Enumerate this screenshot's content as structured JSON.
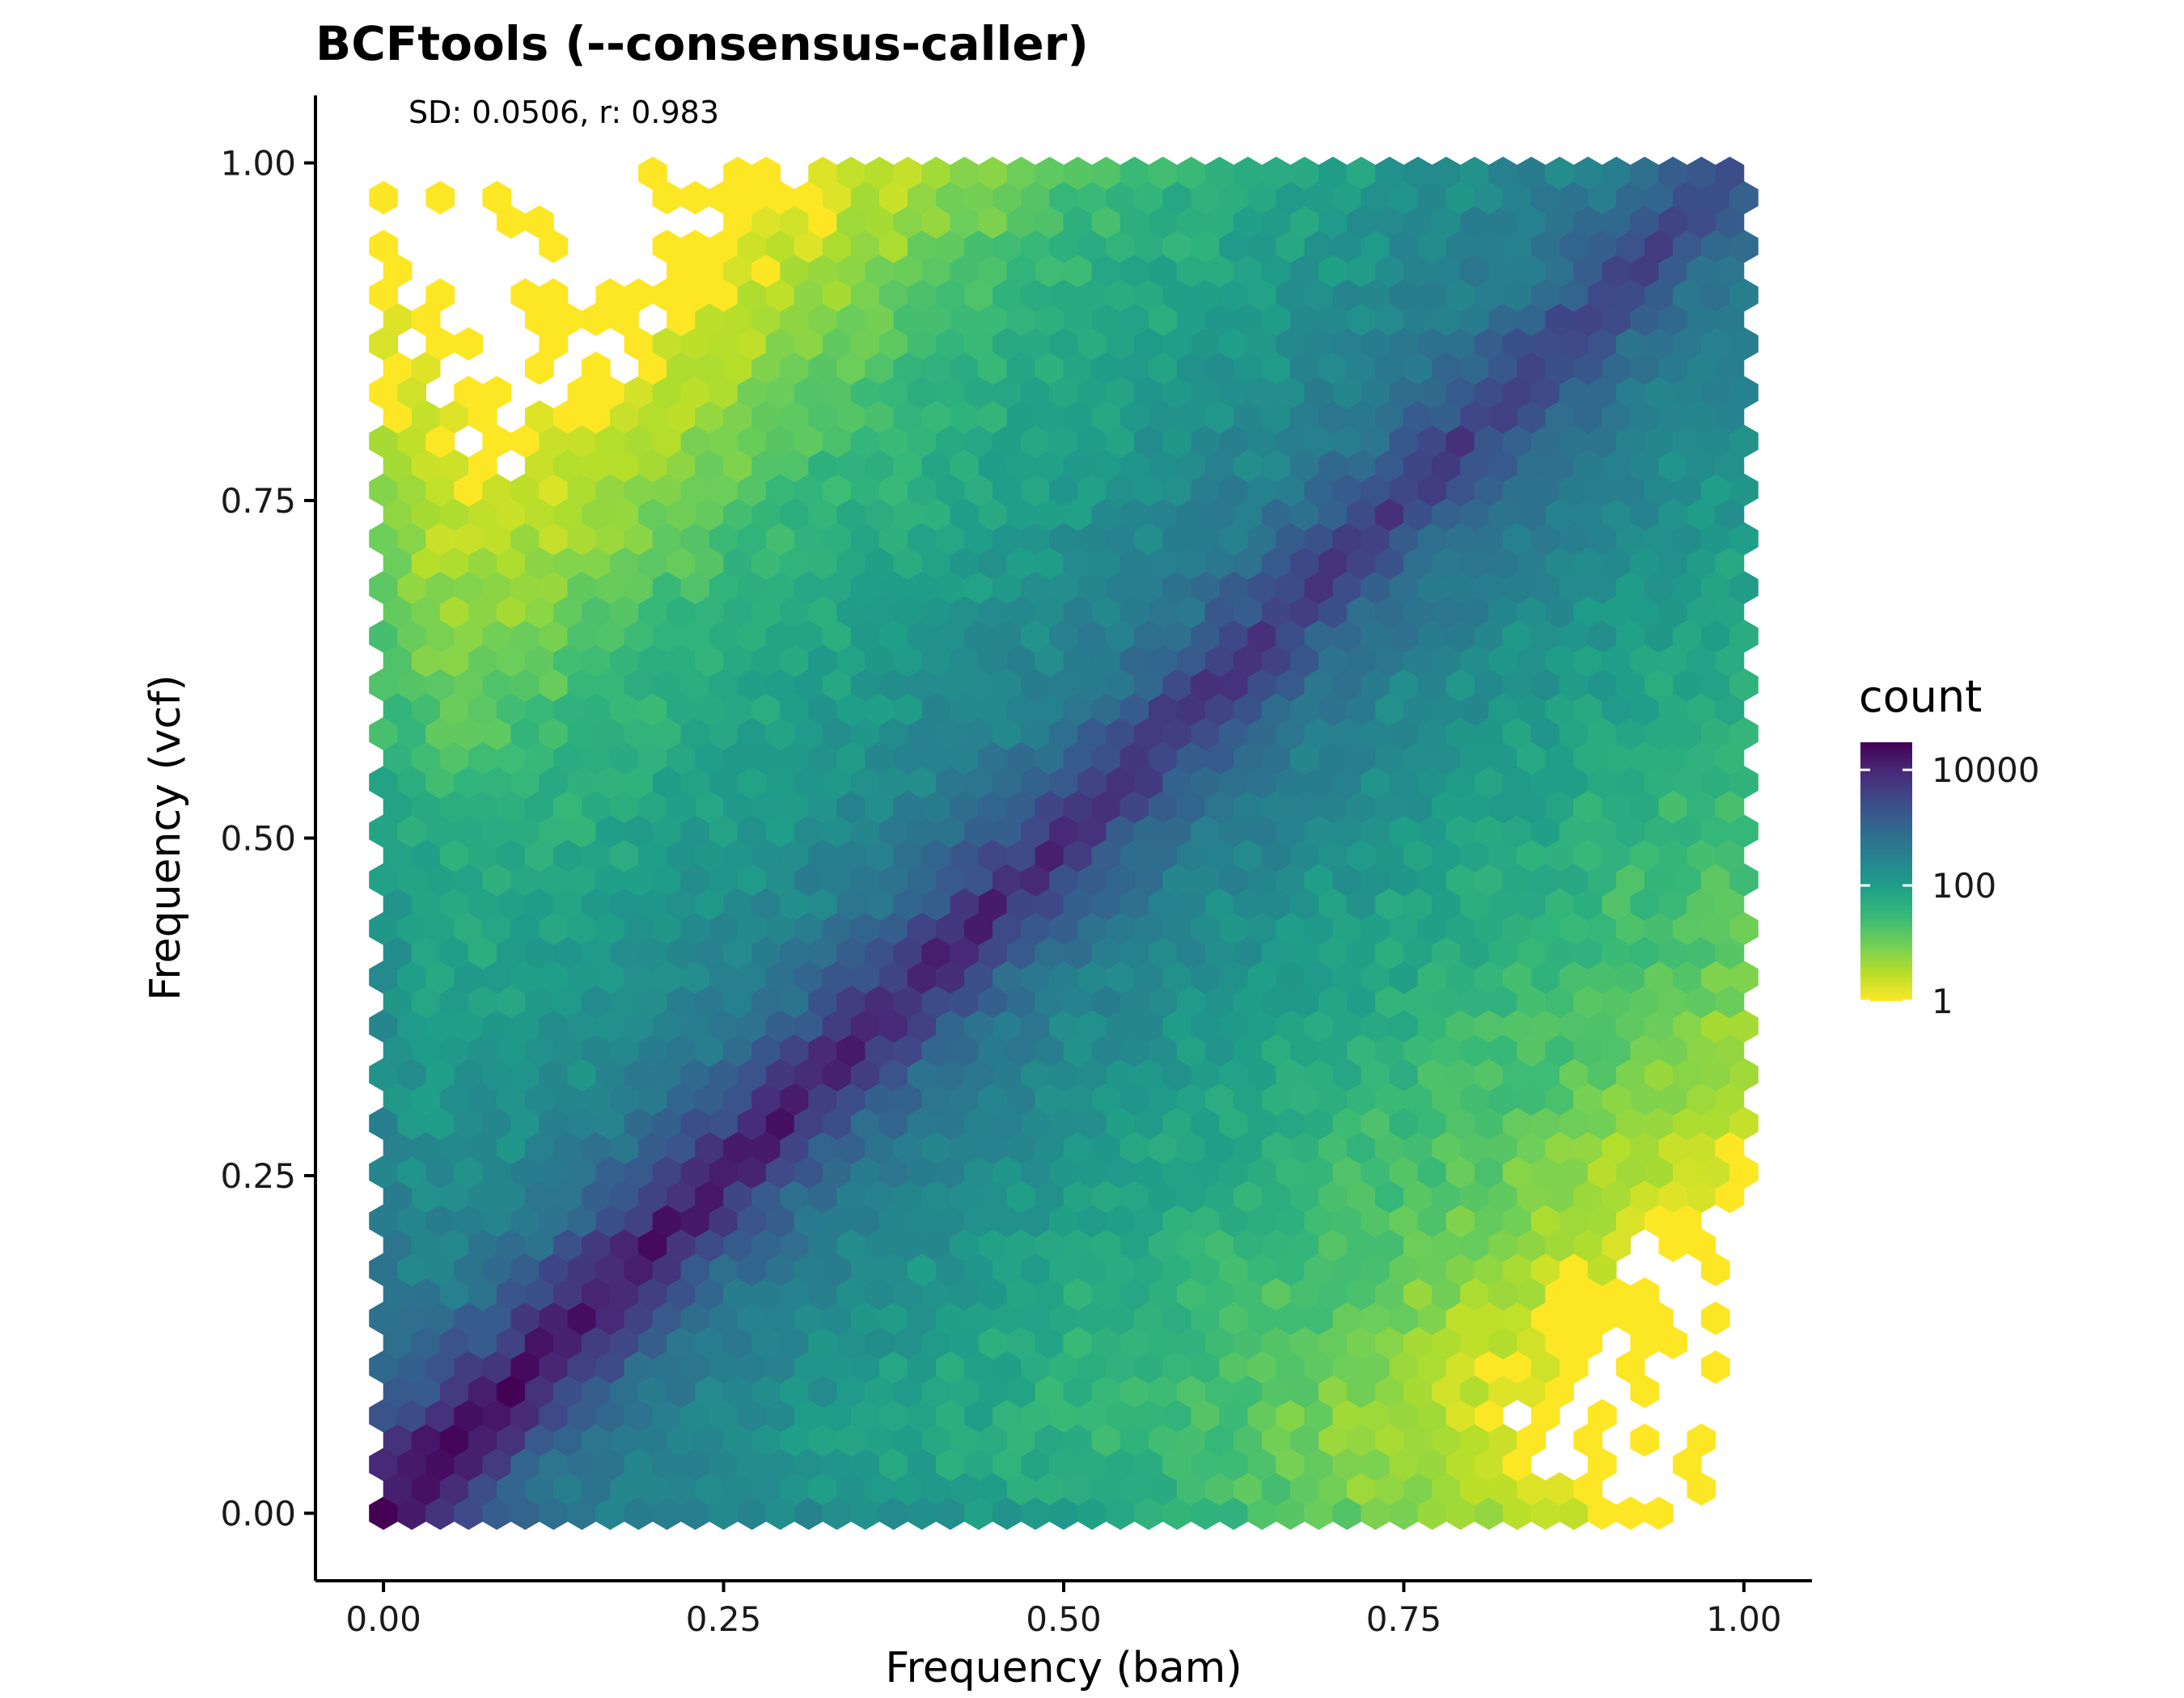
{
  "chart_data": {
    "type": "heatmap",
    "subtype": "hexbin",
    "title": "BCFtools (--consensus-caller)",
    "annotation": "SD: 0.0506, r: 0.983",
    "xlabel": "Frequency (bam)",
    "ylabel": "Frequency (vcf)",
    "xlim": [
      -0.05,
      1.05
    ],
    "ylim": [
      -0.05,
      1.05
    ],
    "x_ticks": [
      0.0,
      0.25,
      0.5,
      0.75,
      1.0
    ],
    "x_tick_labels": [
      "0.00",
      "0.25",
      "0.50",
      "0.75",
      "1.00"
    ],
    "y_ticks": [
      0.0,
      0.25,
      0.5,
      0.75,
      1.0
    ],
    "y_tick_labels": [
      "0.00",
      "0.25",
      "0.50",
      "0.75",
      "1.00"
    ],
    "grid": false,
    "hex_bins": 50,
    "density_model": {
      "description": "count ~ peak along diagonal y = x, declining with distance from diagonal; sparse outliers far from diagonal",
      "diagonal_peak_low_x": 30000,
      "diagonal_peak_high_x": 3000,
      "diagonal_width": 0.022,
      "off_diagonal_floor": 40,
      "lower_edge_counts_at_x0": 300,
      "upper_edge_counts_at_y0": 300
    },
    "legend": {
      "title": "count",
      "position": "right",
      "scale": "log10",
      "range": [
        1,
        30000
      ],
      "breaks": [
        1,
        100,
        10000
      ],
      "break_labels": [
        "1",
        "100",
        "10000"
      ],
      "palette": "viridis (reversed)",
      "colors": [
        "#fde725",
        "#b5de2b",
        "#6ece58",
        "#35b779",
        "#1f9e89",
        "#26828e",
        "#31688e",
        "#3e4989",
        "#482878",
        "#440154"
      ]
    }
  }
}
